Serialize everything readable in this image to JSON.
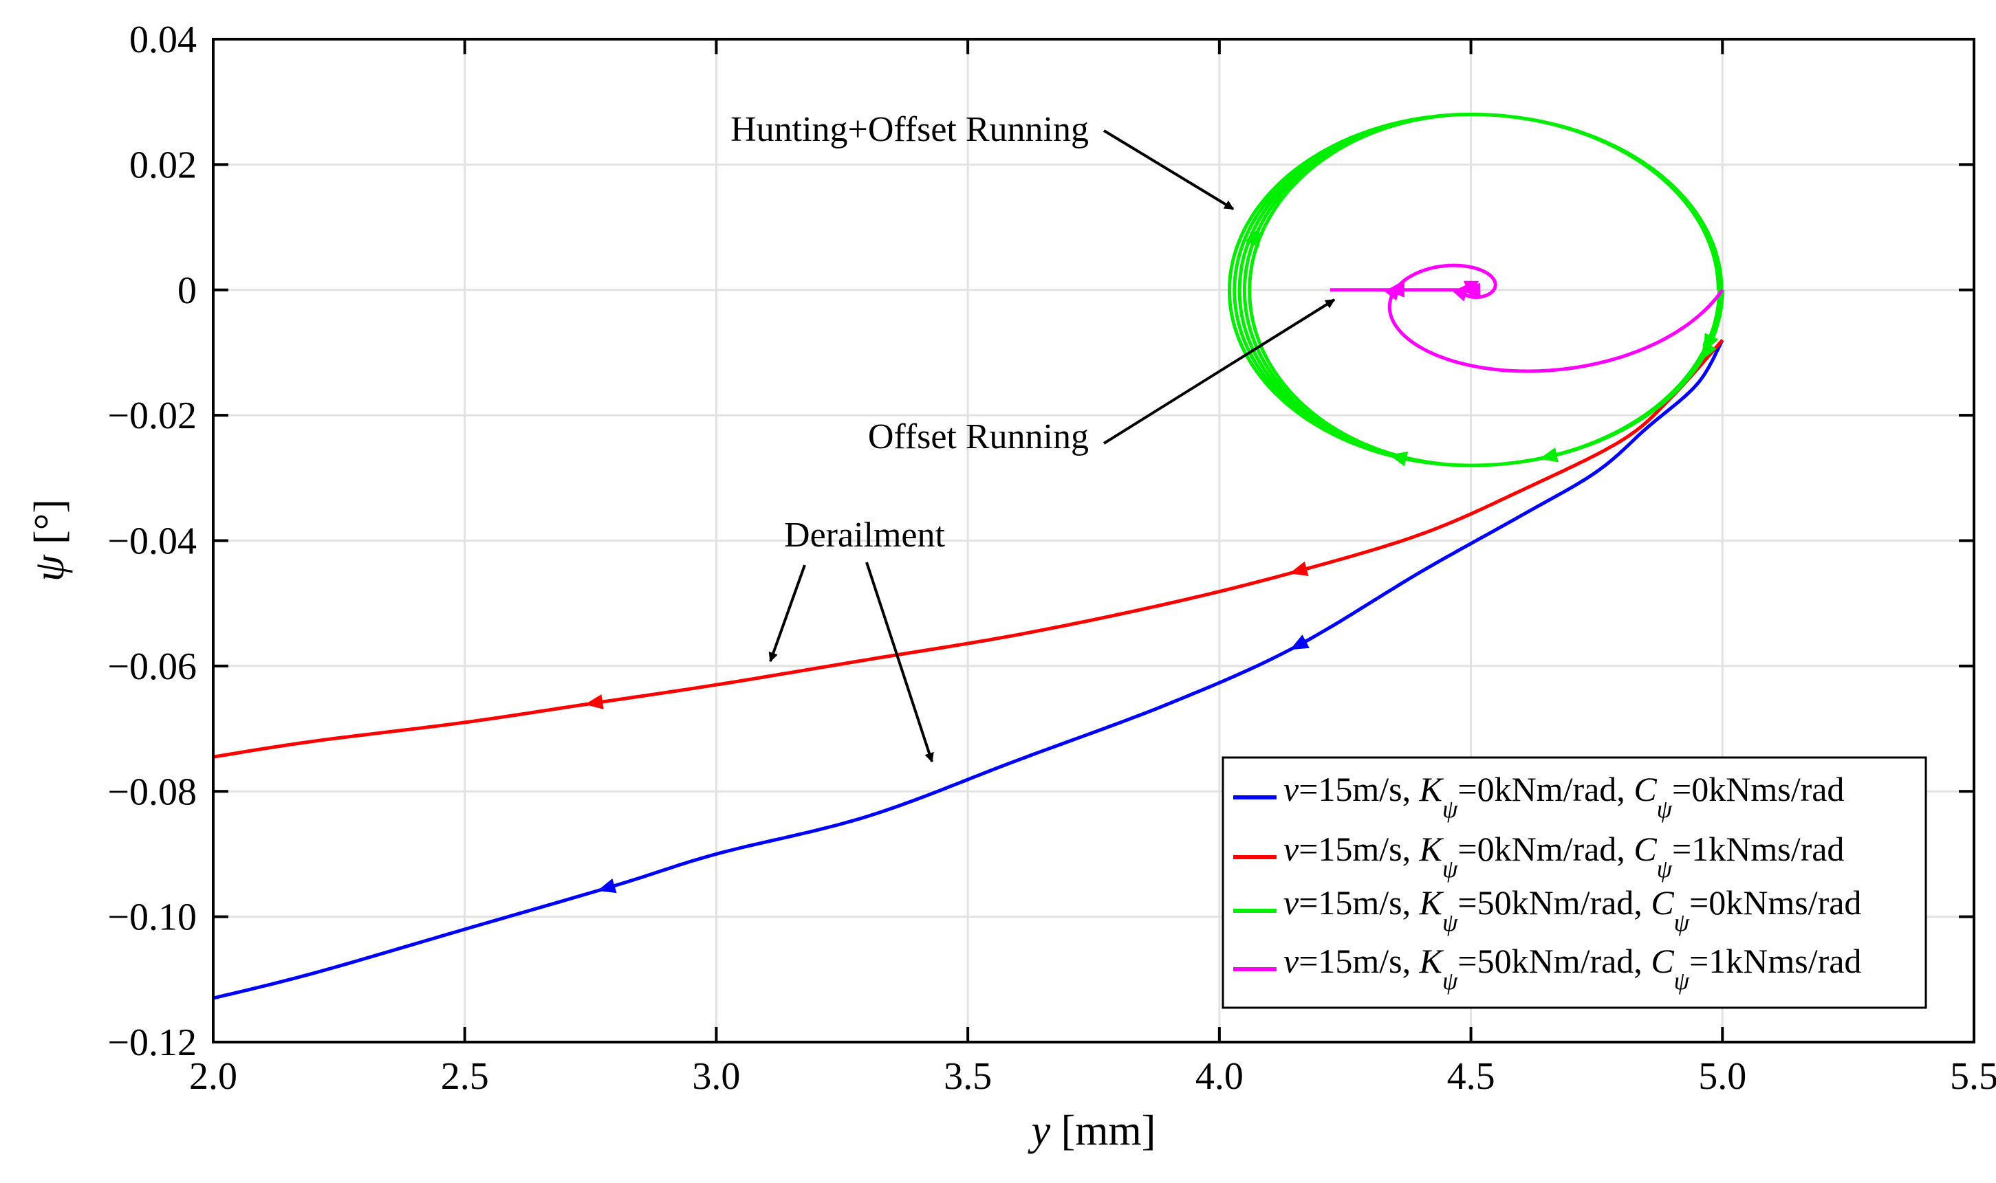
{
  "chart_data": {
    "type": "line",
    "title": "",
    "xlabel": {
      "var": "y",
      "unit": " [mm]"
    },
    "ylabel": {
      "var": "ψ",
      "unit": " [°]"
    },
    "xlim": [
      2.0,
      5.5
    ],
    "ylim": [
      -0.12,
      0.04
    ],
    "grid": true,
    "legend_position": "bottom-right",
    "x_ticks": [
      2.0,
      2.5,
      3.0,
      3.5,
      4.0,
      4.5,
      5.0,
      5.5
    ],
    "x_tick_labels": [
      "2.0",
      "2.5",
      "3.0",
      "3.5",
      "4.0",
      "4.5",
      "5.0",
      "5.5"
    ],
    "y_ticks": [
      0.04,
      0.02,
      0,
      -0.02,
      -0.04,
      -0.06,
      -0.08,
      -0.1,
      -0.12
    ],
    "y_tick_labels": [
      "0.04",
      "0.02",
      "0",
      "−0.02",
      "−0.04",
      "−0.06",
      "−0.08",
      "−0.10",
      "−0.12"
    ],
    "series": [
      {
        "name": "v=15m/s, Kψ=0kNm/rad, Cψ=0kNms/rad",
        "legend": {
          "v": "v",
          "p1": "=15m/s, ",
          "K": "K",
          "p2": "=0kNm/rad, ",
          "C": "C",
          "p3": "=0kNms/rad",
          "sub": "ψ"
        },
        "color": "#0000ff",
        "x": [
          5.0,
          4.95,
          4.85,
          4.75,
          4.6,
          4.4,
          4.15,
          3.9,
          3.6,
          3.3,
          3.0,
          2.8,
          2.5,
          2.2,
          2.0
        ],
        "y": [
          -0.008,
          -0.015,
          -0.022,
          -0.029,
          -0.036,
          -0.045,
          -0.057,
          -0.066,
          -0.075,
          -0.084,
          -0.09,
          -0.095,
          -0.102,
          -0.109,
          -0.113
        ],
        "arrows_at": [
          4.15,
          2.78
        ]
      },
      {
        "name": "v=15m/s, Kψ=0kNm/rad, Cψ=1kNms/rad",
        "legend": {
          "v": "v",
          "p1": "=15m/s, ",
          "K": "K",
          "p2": "=0kNm/rad, ",
          "C": "C",
          "p3": "=1kNms/rad",
          "sub": "ψ"
        },
        "color": "#ff0000",
        "x": [
          5.0,
          4.9,
          4.8,
          4.6,
          4.4,
          4.15,
          3.9,
          3.6,
          3.3,
          3.0,
          2.75,
          2.5,
          2.2,
          2.0
        ],
        "y": [
          -0.008,
          -0.017,
          -0.024,
          -0.032,
          -0.039,
          -0.045,
          -0.05,
          -0.055,
          -0.059,
          -0.063,
          -0.066,
          -0.069,
          -0.072,
          -0.0745
        ],
        "arrows_at": [
          4.15,
          2.75
        ]
      },
      {
        "name": "v=15m/s, Kψ=50kNm/rad, Cψ=0kNms/rad",
        "legend": {
          "v": "v",
          "p1": "=15m/s, ",
          "K": "K",
          "p2": "=50kNm/rad, ",
          "C": "C",
          "p3": "=0kNms/rad",
          "sub": "ψ"
        },
        "color": "#00ee00",
        "center": [
          4.5,
          0.0
        ],
        "semi_axes_y_mm": [
          0.485,
          0.435
        ],
        "amplitude_psi_deg": 0.028,
        "start": [
          5.0,
          0.0
        ],
        "loops": 5
      },
      {
        "name": "v=15m/s, Kψ=50kNm/rad, Cψ=1kNms/rad",
        "legend": {
          "v": "v",
          "p1": "=15m/s, ",
          "K": "K",
          "p2": "=50kNm/rad, ",
          "C": "C",
          "p3": "=1kNms/rad",
          "sub": "ψ"
        },
        "color": "#ff00ff",
        "start": [
          5.0,
          0.0
        ],
        "center": [
          4.5,
          0.0
        ],
        "end": [
          4.22,
          0.0
        ],
        "spiral": "decaying, converging to y=4.5 mm, psi=0 then exiting at psi=0"
      }
    ],
    "annotations": [
      {
        "text": "Hunting+Offset Running",
        "target": [
          4.05,
          0.013
        ]
      },
      {
        "text": "Offset Running",
        "target": [
          4.25,
          0.0
        ]
      },
      {
        "text": "Derailment",
        "targets": [
          [
            3.12,
            -0.0605
          ],
          [
            3.45,
            -0.0775
          ]
        ]
      }
    ]
  }
}
